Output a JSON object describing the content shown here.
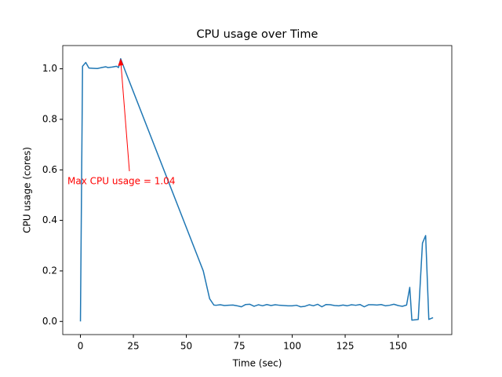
{
  "chart_data": {
    "type": "line",
    "title": "CPU usage over Time",
    "x_label": "Time (sec)",
    "y_label": "CPU usage (cores)",
    "annotation": "Max CPU usage = 1.04",
    "annotation_color": "#ff0000",
    "x": [
      0,
      1,
      2.5,
      4,
      6,
      8,
      10,
      12,
      13,
      15,
      17,
      18,
      19,
      21,
      58,
      61,
      63,
      64,
      66,
      68,
      70,
      72,
      74,
      76,
      78,
      80,
      82,
      84,
      86,
      88,
      90,
      92,
      94,
      96,
      98,
      100,
      102,
      104,
      106,
      108,
      110,
      112,
      114,
      116,
      118,
      120,
      122,
      124,
      126,
      128,
      130,
      132,
      134,
      136,
      138,
      140,
      142,
      144,
      146,
      148,
      150,
      152,
      154,
      155.5,
      156.5,
      159.5,
      161.5,
      163,
      164.5,
      166.5
    ],
    "series": [
      {
        "name": "CPU usage",
        "color": "#1f77b4",
        "values": [
          0,
          1.01,
          1.025,
          1.003,
          1.002,
          1.001,
          1.005,
          1.008,
          1.005,
          1.007,
          1.01,
          1.005,
          1.04,
          0.995,
          0.2,
          0.09,
          0.065,
          0.064,
          0.066,
          0.063,
          0.064,
          0.065,
          0.062,
          0.058,
          0.067,
          0.068,
          0.06,
          0.066,
          0.062,
          0.067,
          0.063,
          0.066,
          0.064,
          0.063,
          0.062,
          0.062,
          0.064,
          0.058,
          0.06,
          0.066,
          0.062,
          0.068,
          0.058,
          0.067,
          0.066,
          0.063,
          0.062,
          0.065,
          0.062,
          0.066,
          0.064,
          0.067,
          0.058,
          0.066,
          0.066,
          0.065,
          0.067,
          0.062,
          0.064,
          0.068,
          0.063,
          0.06,
          0.065,
          0.135,
          0.005,
          0.008,
          0.31,
          0.34,
          0.008,
          0.015
        ]
      }
    ],
    "xlim": [
      -8.35,
      175.35
    ],
    "ylim": [
      -0.052,
      1.092
    ],
    "xticks": [
      0,
      25,
      50,
      75,
      100,
      125,
      150
    ],
    "yticks": [
      {
        "value": 0,
        "label": "0.0"
      },
      {
        "value": 0.2,
        "label": "0.2"
      },
      {
        "value": 0.4,
        "label": "0.4"
      },
      {
        "value": 0.6,
        "label": "0.6"
      },
      {
        "value": 0.8,
        "label": "0.8"
      },
      {
        "value": 1,
        "label": "1.0"
      }
    ]
  }
}
